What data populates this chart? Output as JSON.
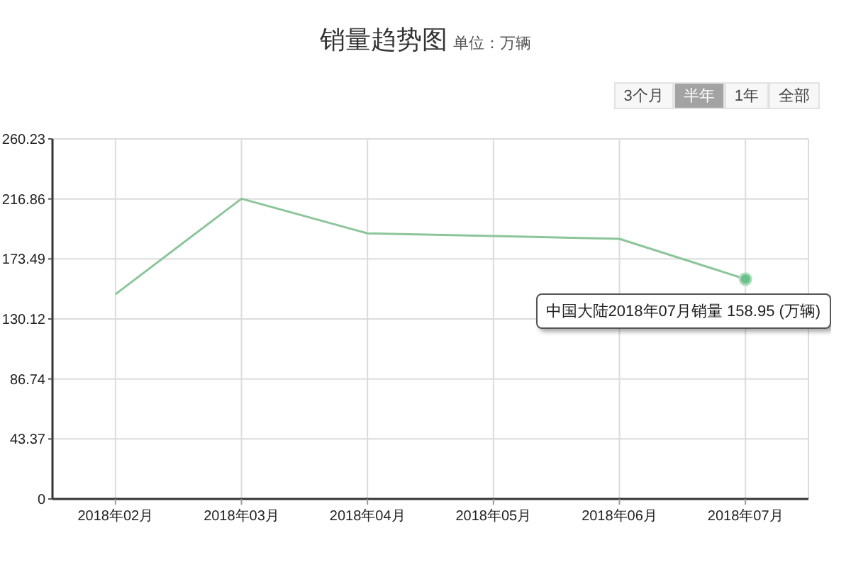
{
  "chart_data": {
    "type": "line",
    "title": "销量趋势图",
    "subtitle": "单位：万辆",
    "categories": [
      "2018年02月",
      "2018年03月",
      "2018年04月",
      "2018年05月",
      "2018年06月",
      "2018年07月"
    ],
    "series": [
      {
        "color": "#8cc59a",
        "values": [
          148,
          217,
          192,
          190,
          188,
          158.95
        ]
      }
    ],
    "ylim": [
      0,
      260.23
    ],
    "yticks": [
      0,
      43.37,
      86.74,
      130.12,
      173.49,
      216.86,
      260.23
    ],
    "grid": true,
    "marker": "none",
    "annotations": [
      "3个月",
      "半年",
      "1年",
      "全部",
      {
        "text": "中国大陆2018年07月销量 158.95 (万辆)",
        "x": "2018年07月",
        "y": 158.95
      }
    ]
  }
}
